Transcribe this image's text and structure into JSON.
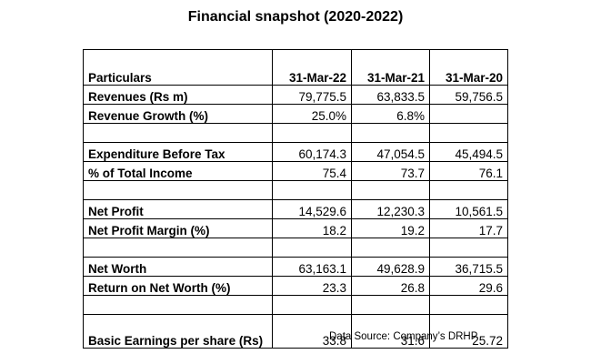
{
  "title": "Financial snapshot (2020-2022)",
  "table": {
    "header": {
      "particulars": "Particulars",
      "col1": "31-Mar-22",
      "col2": "31-Mar-21",
      "col3": "31-Mar-20"
    },
    "rows": [
      {
        "label": "Revenues (Rs m)",
        "v1": "79,775.5",
        "v2": "63,833.5",
        "v3": "59,756.5"
      },
      {
        "label": "Revenue Growth (%)",
        "v1": "25.0%",
        "v2": "6.8%",
        "v3": ""
      },
      {
        "label": "",
        "v1": "",
        "v2": "",
        "v3": ""
      },
      {
        "label": "Expenditure Before Tax",
        "v1": "60,174.3",
        "v2": "47,054.5",
        "v3": "45,494.5"
      },
      {
        "label": "% of Total Income",
        "v1": "75.4",
        "v2": "73.7",
        "v3": "76.1"
      },
      {
        "label": "",
        "v1": "",
        "v2": "",
        "v3": ""
      },
      {
        "label": "Net Profit",
        "v1": "14,529.6",
        "v2": "12,230.3",
        "v3": "10,561.5"
      },
      {
        "label": "Net Profit Margin (%)",
        "v1": "18.2",
        "v2": "19.2",
        "v3": "17.7"
      },
      {
        "label": "",
        "v1": "",
        "v2": "",
        "v3": ""
      },
      {
        "label": "Net Worth",
        "v1": "63,163.1",
        "v2": "49,628.9",
        "v3": "36,715.5"
      },
      {
        "label": "Return on Net Worth (%)",
        "v1": "23.3",
        "v2": "26.8",
        "v3": "29.6"
      },
      {
        "label": "",
        "v1": "",
        "v2": "",
        "v3": ""
      },
      {
        "label": "Basic Earnings per share (Rs)",
        "v1": "33.8",
        "v2": "31.6",
        "v3": "25.72"
      }
    ]
  },
  "source": "Data Source: Company’s DRHP"
}
